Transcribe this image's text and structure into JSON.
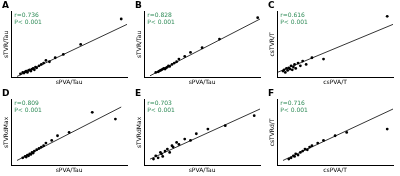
{
  "chart_data": [
    {
      "type": "scatter",
      "title": "A",
      "annotations": [
        "r=0.736",
        "P< 0.001"
      ],
      "x_label": "sPVA/Tau",
      "y_label": "sTVR/Tau",
      "color": "#000000",
      "x": [
        8,
        10,
        11,
        12,
        13,
        14,
        15,
        16,
        17,
        18,
        19,
        20,
        21,
        22,
        24,
        26,
        28,
        30,
        33,
        38,
        45,
        60,
        95
      ],
      "values": [
        6,
        8,
        7,
        9,
        10,
        8,
        11,
        12,
        10,
        13,
        14,
        12,
        16,
        15,
        18,
        20,
        22,
        26,
        24,
        30,
        35,
        50,
        88
      ],
      "fit_line": {
        "x": [
          5,
          100
        ],
        "y": [
          2,
          80
        ]
      },
      "xlim": [
        0,
        100
      ],
      "ylim": [
        0,
        100
      ],
      "grid": false,
      "tick_labels": false
    },
    {
      "type": "scatter",
      "title": "B",
      "annotations": [
        "r=0.828",
        "P< 0.001"
      ],
      "x_label": "sPVA/Tau",
      "y_label": "sTVR/Tau",
      "color": "#000000",
      "x": [
        10,
        12,
        13,
        14,
        15,
        16,
        17,
        18,
        19,
        20,
        21,
        22,
        24,
        26,
        28,
        30,
        35,
        40,
        50,
        65,
        98
      ],
      "values": [
        8,
        9,
        10,
        11,
        12,
        13,
        14,
        13,
        15,
        16,
        18,
        17,
        20,
        22,
        24,
        28,
        32,
        38,
        45,
        58,
        90
      ],
      "fit_line": {
        "x": [
          5,
          100
        ],
        "y": [
          3,
          88
        ]
      },
      "xlim": [
        0,
        100
      ],
      "ylim": [
        0,
        100
      ],
      "grid": false,
      "tick_labels": false
    },
    {
      "type": "scatter",
      "title": "C",
      "annotations": [
        "r=0.616",
        "P< 0.001"
      ],
      "x_label": "csPVA/T",
      "y_label": "csTVR/T",
      "color": "#000000",
      "x": [
        5,
        6,
        7,
        8,
        9,
        10,
        11,
        12,
        13,
        14,
        15,
        16,
        18,
        20,
        22,
        25,
        30,
        40,
        95
      ],
      "values": [
        10,
        12,
        8,
        14,
        11,
        15,
        13,
        18,
        12,
        16,
        20,
        14,
        22,
        18,
        25,
        20,
        30,
        28,
        92
      ],
      "fit_line": {
        "x": [
          0,
          100
        ],
        "y": [
          8,
          80
        ]
      },
      "xlim": [
        0,
        100
      ],
      "ylim": [
        0,
        100
      ],
      "grid": false,
      "tick_labels": false
    },
    {
      "type": "scatter",
      "title": "D",
      "annotations": [
        "r=0.809",
        "P< 0.001"
      ],
      "x_label": "sPVA/Tau",
      "y_label": "sTVRdMax",
      "color": "#000000",
      "x": [
        10,
        12,
        13,
        14,
        15,
        16,
        17,
        18,
        19,
        20,
        22,
        24,
        26,
        28,
        30,
        35,
        40,
        50,
        70,
        90
      ],
      "values": [
        12,
        14,
        13,
        16,
        15,
        18,
        17,
        20,
        19,
        22,
        24,
        26,
        28,
        30,
        34,
        38,
        45,
        50,
        80,
        70
      ],
      "fit_line": {
        "x": [
          5,
          95
        ],
        "y": [
          8,
          88
        ]
      },
      "xlim": [
        0,
        100
      ],
      "ylim": [
        0,
        100
      ],
      "grid": false,
      "tick_labels": false
    },
    {
      "type": "scatter",
      "title": "E",
      "annotations": [
        "r=0.703",
        "P< 0.001"
      ],
      "x_label": "sPVA/Tau",
      "y_label": "sTVRdMax",
      "color": "#000000",
      "x": [
        8,
        10,
        12,
        14,
        15,
        16,
        18,
        20,
        22,
        24,
        25,
        28,
        30,
        35,
        40,
        45,
        55,
        70,
        95
      ],
      "values": [
        10,
        15,
        12,
        20,
        18,
        14,
        22,
        25,
        20,
        30,
        28,
        35,
        32,
        40,
        38,
        48,
        55,
        60,
        75
      ],
      "fit_line": {
        "x": [
          5,
          100
        ],
        "y": [
          10,
          85
        ]
      },
      "xlim": [
        0,
        100
      ],
      "ylim": [
        0,
        100
      ],
      "grid": false,
      "tick_labels": false
    },
    {
      "type": "scatter",
      "title": "F",
      "annotations": [
        "r=0.716",
        "P< 0.001"
      ],
      "x_label": "csPVA/T",
      "y_label": "csTVRd/T",
      "color": "#000000",
      "x": [
        10,
        12,
        14,
        15,
        16,
        18,
        20,
        22,
        24,
        26,
        28,
        30,
        35,
        40,
        50,
        60,
        95
      ],
      "values": [
        10,
        12,
        15,
        14,
        18,
        16,
        20,
        22,
        25,
        24,
        28,
        30,
        34,
        38,
        45,
        50,
        55
      ],
      "fit_line": {
        "x": [
          5,
          100
        ],
        "y": [
          8,
          85
        ]
      },
      "xlim": [
        0,
        100
      ],
      "ylim": [
        0,
        100
      ],
      "grid": false,
      "tick_labels": false
    }
  ]
}
